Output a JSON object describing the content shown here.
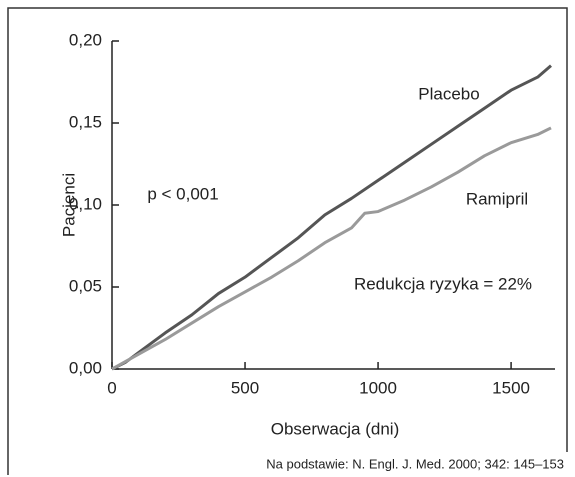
{
  "chart_data": {
    "type": "line",
    "xlabel": "Obserwacja (dni)",
    "ylabel": "Pacjenci",
    "xlim": [
      0,
      1650
    ],
    "xticks": [
      0,
      500,
      1000,
      1500
    ],
    "ylim": [
      0,
      0.2
    ],
    "yticks": [
      {
        "value": 0,
        "label": "0,00"
      },
      {
        "value": 0.05,
        "label": "0,05"
      },
      {
        "value": 0.1,
        "label": "0,10"
      },
      {
        "value": 0.15,
        "label": "0,15"
      },
      {
        "value": 0.2,
        "label": "0,20"
      }
    ],
    "series": [
      {
        "name": "Placebo",
        "color": "#555555",
        "x": [
          0,
          50,
          100,
          200,
          300,
          400,
          500,
          600,
          700,
          800,
          900,
          1000,
          1100,
          1200,
          1300,
          1400,
          1500,
          1600,
          1650
        ],
        "values": [
          0,
          0.004,
          0.01,
          0.022,
          0.033,
          0.046,
          0.056,
          0.068,
          0.08,
          0.094,
          0.104,
          0.115,
          0.126,
          0.137,
          0.148,
          0.159,
          0.17,
          0.178,
          0.185
        ]
      },
      {
        "name": "Ramipril",
        "color": "#9a9a9a",
        "x": [
          0,
          100,
          200,
          300,
          400,
          500,
          600,
          700,
          800,
          900,
          950,
          1000,
          1100,
          1200,
          1300,
          1400,
          1500,
          1600,
          1650
        ],
        "values": [
          0,
          0.009,
          0.018,
          0.028,
          0.038,
          0.047,
          0.056,
          0.066,
          0.077,
          0.086,
          0.095,
          0.096,
          0.103,
          0.111,
          0.12,
          0.13,
          0.138,
          0.143,
          0.147
        ]
      }
    ],
    "annotations": [
      "p < 0,001",
      "Redukcja ryzyka = 22%"
    ],
    "source": "Na podstawie: N. Engl. J. Med. 2000; 342: 145–153"
  }
}
